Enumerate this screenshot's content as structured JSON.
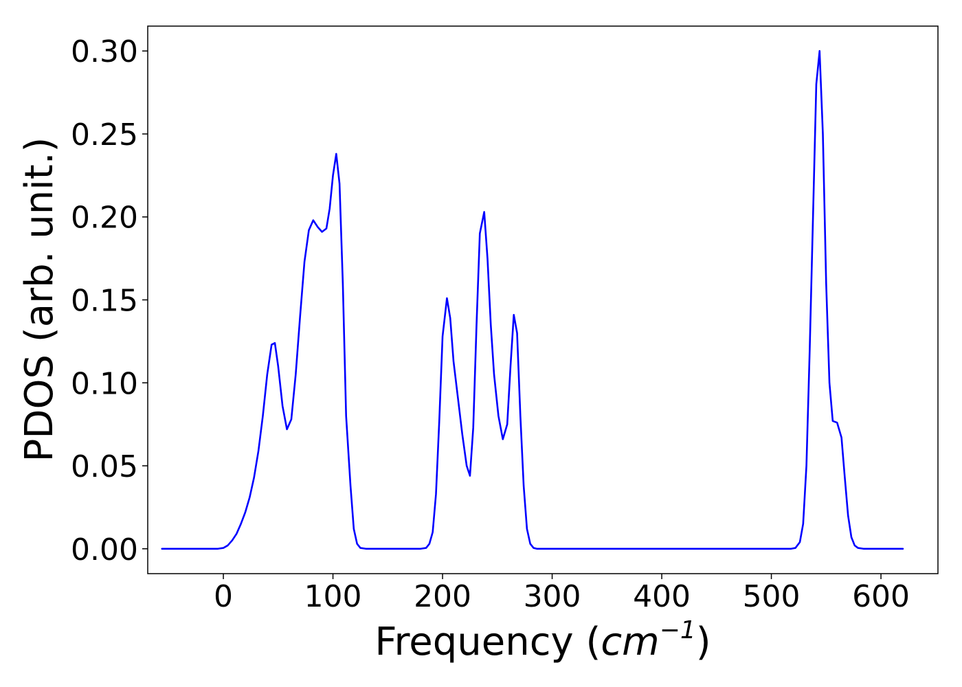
{
  "chart_data": {
    "type": "line",
    "title": "",
    "xlabel": "Frequency",
    "xlabel_unit_prefix": "(",
    "xlabel_unit_base": "cm",
    "xlabel_unit_exponent": "−1",
    "xlabel_unit_suffix": ")",
    "ylabel": "PDOS (arb. unit.)",
    "xlim": [
      -69,
      652
    ],
    "ylim": [
      -0.015,
      0.315
    ],
    "xticks": [
      0,
      100,
      200,
      300,
      400,
      500,
      600
    ],
    "xtick_labels": [
      "0",
      "100",
      "200",
      "300",
      "400",
      "500",
      "600"
    ],
    "yticks": [
      0.0,
      0.05,
      0.1,
      0.15,
      0.2,
      0.25,
      0.3
    ],
    "ytick_labels": [
      "0.00",
      "0.05",
      "0.10",
      "0.15",
      "0.20",
      "0.25",
      "0.30"
    ],
    "grid": false,
    "legend": "none",
    "series": [
      {
        "color": "#0000ff",
        "x": [
          -56,
          -40,
          -20,
          -10,
          -5,
          0,
          4,
          8,
          12,
          16,
          20,
          24,
          28,
          32,
          36,
          40,
          44,
          47,
          50,
          54,
          58,
          62,
          66,
          70,
          74,
          78,
          82,
          86,
          90,
          94,
          97,
          100,
          103,
          106,
          109,
          112,
          116,
          119,
          122,
          125,
          130,
          140,
          160,
          180,
          185,
          188,
          191,
          194,
          197,
          200,
          204,
          207,
          210,
          214,
          218,
          222,
          225,
          228,
          231,
          234,
          238,
          241,
          244,
          247,
          251,
          255,
          259,
          262,
          265,
          268,
          271,
          274,
          277,
          280,
          283,
          286,
          290,
          300,
          400,
          500,
          518,
          522,
          526,
          529,
          532,
          535,
          538,
          541,
          544,
          547,
          550,
          553,
          556,
          560,
          564,
          567,
          570,
          573,
          576,
          579,
          584,
          590,
          600,
          620
        ],
        "y": [
          0,
          0,
          0,
          0,
          0,
          0.0005,
          0.002,
          0.005,
          0.009,
          0.015,
          0.022,
          0.031,
          0.043,
          0.059,
          0.08,
          0.105,
          0.123,
          0.124,
          0.11,
          0.086,
          0.072,
          0.078,
          0.105,
          0.14,
          0.173,
          0.192,
          0.198,
          0.194,
          0.191,
          0.193,
          0.205,
          0.225,
          0.238,
          0.22,
          0.16,
          0.08,
          0.038,
          0.012,
          0.003,
          0.0005,
          0,
          0,
          0,
          0,
          0.0005,
          0.003,
          0.01,
          0.033,
          0.077,
          0.128,
          0.151,
          0.139,
          0.113,
          0.091,
          0.069,
          0.05,
          0.044,
          0.073,
          0.135,
          0.19,
          0.203,
          0.175,
          0.135,
          0.105,
          0.08,
          0.066,
          0.075,
          0.11,
          0.141,
          0.13,
          0.08,
          0.038,
          0.012,
          0.003,
          0.0005,
          0,
          0,
          0,
          0,
          0,
          0,
          0.0005,
          0.004,
          0.015,
          0.05,
          0.12,
          0.2,
          0.28,
          0.3,
          0.25,
          0.16,
          0.1,
          0.077,
          0.076,
          0.067,
          0.043,
          0.02,
          0.007,
          0.002,
          0.0005,
          0,
          0,
          0,
          0
        ]
      }
    ]
  }
}
